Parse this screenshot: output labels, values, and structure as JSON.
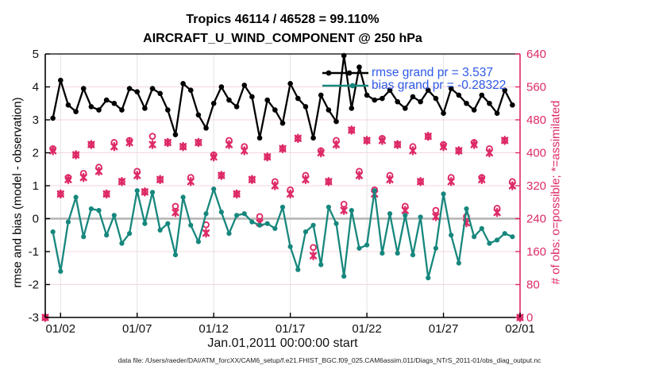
{
  "title": {
    "line1": "Tropics 46114 / 46528 = 99.110%",
    "line2": "AIRCRAFT_U_WIND_COMPONENT @ 250 hPa"
  },
  "axes": {
    "left": {
      "label": "rmse and bias (model - observation)",
      "ticks": [
        5,
        4,
        3,
        2,
        1,
        0,
        -1,
        -2,
        -3
      ],
      "range": [
        -3,
        5
      ],
      "color": "#000000"
    },
    "right": {
      "label": "# of obs: o=possible; *=assimilated",
      "ticks": [
        640,
        560,
        480,
        400,
        320,
        240,
        160,
        80,
        0
      ],
      "range": [
        0,
        640
      ],
      "color": "#dd2a66"
    },
    "bottom": {
      "label": "Jan.01,2011 00:00:00 start",
      "tick_labels": [
        "01/02",
        "01/07",
        "01/12",
        "01/17",
        "01/22",
        "01/27",
        "02/01"
      ],
      "tick_days": [
        1,
        6,
        11,
        16,
        21,
        26,
        31
      ],
      "range_days": [
        0,
        31
      ],
      "color": "#111111"
    }
  },
  "legend": {
    "rmse_label": "rmse grand pr = 3.537",
    "bias_label": "bias grand pr = -0.28322",
    "text_color": "#2e59e8"
  },
  "footer": {
    "data_file": "data file: /Users/raeder/DAI/ATM_forcXX/CAM6_setup/f.e21.FHIST_BGC.f09_025.CAM6assim.011/Diags_NTrS_2011-01/obs_diag_output.nc"
  },
  "colors": {
    "rmse": "#000000",
    "bias": "#17877d",
    "obs": "#dd2a66",
    "grid_h": "#f4d6db",
    "grid_v": "#e2e2e6",
    "zero_line": "#b3b3b3",
    "legend_text": "#2e59e8"
  },
  "chart_data": {
    "type": "line",
    "title": "Tropics 46114 / 46528 = 99.110% — AIRCRAFT_U_WIND_COMPONENT @ 250 hPa",
    "xlabel": "Jan.01,2011 00:00:00 start",
    "ylabel_left": "rmse and bias (model - observation)",
    "ylabel_right": "# of obs: o=possible; *=assimilated",
    "ylim_left": [
      -3,
      5
    ],
    "ylim_right": [
      0,
      640
    ],
    "xlim_days": [
      0,
      31
    ],
    "x_days": [
      0.5,
      1.0,
      1.5,
      2.0,
      2.5,
      3.0,
      3.5,
      4.0,
      4.5,
      5.0,
      5.5,
      6.0,
      6.5,
      7.0,
      7.5,
      8.0,
      8.5,
      9.0,
      9.5,
      10.0,
      10.5,
      11.0,
      11.5,
      12.0,
      12.5,
      13.0,
      13.5,
      14.0,
      14.5,
      15.0,
      15.5,
      16.0,
      16.5,
      17.0,
      17.5,
      18.0,
      18.5,
      19.0,
      19.5,
      20.0,
      20.5,
      21.0,
      21.5,
      22.0,
      22.5,
      23.0,
      23.5,
      24.0,
      24.5,
      25.0,
      25.5,
      26.0,
      26.5,
      27.0,
      27.5,
      28.0,
      28.5,
      29.0,
      29.5,
      30.0,
      30.5
    ],
    "series": [
      {
        "name": "rmse",
        "grand_value": 3.537,
        "values": [
          3.05,
          4.2,
          3.45,
          3.25,
          3.95,
          3.4,
          3.3,
          3.6,
          3.5,
          3.3,
          3.95,
          3.85,
          3.35,
          3.95,
          3.8,
          3.3,
          2.55,
          4.1,
          3.9,
          3.15,
          2.75,
          3.5,
          4.0,
          3.6,
          3.4,
          4.05,
          3.7,
          2.45,
          3.6,
          3.3,
          2.9,
          4.1,
          3.65,
          3.4,
          2.45,
          3.75,
          3.3,
          2.95,
          4.95,
          3.35,
          4.6,
          3.75,
          3.6,
          3.65,
          3.9,
          3.55,
          3.35,
          3.7,
          3.55,
          3.9,
          3.65,
          3.2,
          3.95,
          3.75,
          3.5,
          3.3,
          3.75,
          3.5,
          3.2,
          3.9,
          3.45
        ]
      },
      {
        "name": "bias",
        "grand_value": -0.28322,
        "values": [
          -0.4,
          -1.6,
          -0.1,
          0.65,
          -0.55,
          0.3,
          0.25,
          -0.5,
          0.1,
          -0.75,
          -0.45,
          0.85,
          -0.15,
          0.8,
          -0.35,
          -0.15,
          -1.1,
          0.65,
          -0.2,
          -0.7,
          0.15,
          0.9,
          0.2,
          -0.45,
          0.1,
          0.15,
          -0.1,
          -0.2,
          -0.15,
          -0.3,
          0.35,
          -0.85,
          -1.55,
          -0.4,
          -0.2,
          -1.4,
          0.35,
          -0.15,
          -1.75,
          0.25,
          -0.9,
          -0.8,
          0.85,
          -1.05,
          0.15,
          -1.05,
          0.1,
          -1.1,
          0.05,
          -1.8,
          -0.9,
          0.75,
          -0.5,
          -1.35,
          0.3,
          -0.55,
          -0.3,
          -0.75,
          -0.65,
          -0.45,
          -0.55
        ]
      }
    ],
    "obs_counts": {
      "days": [
        0,
        0.5,
        1.0,
        1.5,
        2.0,
        2.5,
        3.0,
        3.5,
        4.0,
        4.5,
        5.0,
        5.5,
        6.0,
        6.5,
        7.0,
        7.5,
        8.0,
        8.5,
        9.0,
        9.5,
        10.0,
        10.5,
        11.0,
        11.5,
        12.0,
        12.5,
        13.0,
        13.5,
        14.0,
        14.5,
        15.0,
        15.5,
        16.0,
        16.5,
        17.0,
        17.5,
        18.0,
        18.5,
        19.0,
        19.5,
        20.0,
        20.5,
        21.0,
        21.5,
        22.0,
        22.5,
        23.0,
        23.5,
        24.0,
        24.5,
        25.0,
        25.5,
        26.0,
        26.5,
        27.0,
        27.5,
        28.0,
        28.5,
        29.0,
        29.5,
        30.0,
        30.5,
        31.0
      ],
      "possible": [
        0,
        410,
        300,
        340,
        395,
        350,
        420,
        365,
        300,
        425,
        330,
        430,
        355,
        305,
        440,
        335,
        425,
        270,
        415,
        340,
        425,
        225,
        395,
        345,
        430,
        300,
        415,
        335,
        245,
        390,
        330,
        410,
        310,
        435,
        345,
        170,
        405,
        330,
        430,
        275,
        455,
        355,
        430,
        310,
        435,
        345,
        420,
        270,
        415,
        330,
        440,
        260,
        420,
        340,
        405,
        245,
        425,
        340,
        410,
        265,
        430,
        330,
        0
      ],
      "assimilated": [
        0,
        405,
        300,
        335,
        395,
        340,
        420,
        355,
        300,
        415,
        330,
        425,
        345,
        305,
        420,
        335,
        425,
        255,
        415,
        330,
        425,
        205,
        390,
        345,
        420,
        300,
        405,
        335,
        230,
        390,
        320,
        410,
        300,
        435,
        335,
        150,
        400,
        330,
        420,
        260,
        455,
        345,
        430,
        300,
        430,
        335,
        420,
        260,
        405,
        330,
        440,
        245,
        415,
        330,
        405,
        230,
        420,
        335,
        400,
        255,
        430,
        320,
        0
      ],
      "possible_total": 46528,
      "assimilated_total": 46114,
      "percent_assimilated": "99.110%"
    }
  }
}
